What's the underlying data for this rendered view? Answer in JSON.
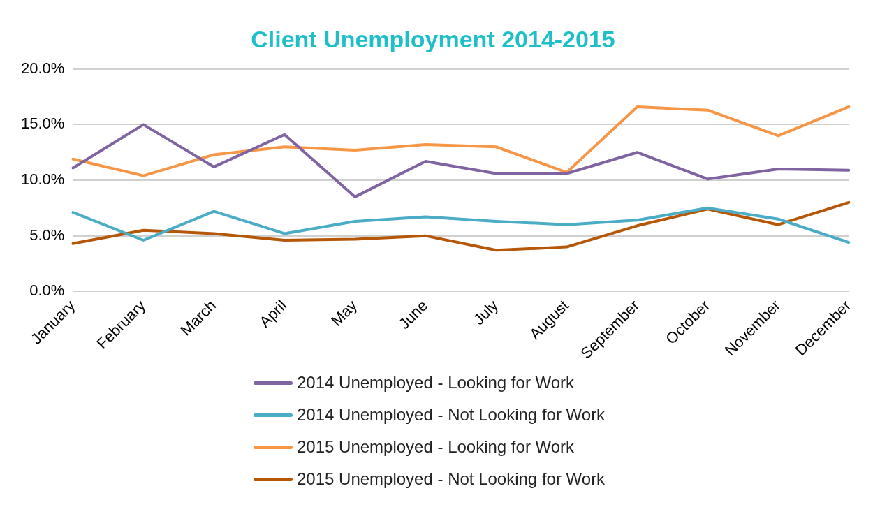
{
  "chart_data": {
    "type": "line",
    "title": "Client Unemployment 2014-2015",
    "categories": [
      "January",
      "February",
      "March",
      "April",
      "May",
      "June",
      "July",
      "August",
      "September",
      "October",
      "November",
      "December"
    ],
    "series": [
      {
        "name": "2014 Unemployed - Looking for Work",
        "color": "#8064a2",
        "values": [
          11.1,
          15.0,
          11.2,
          14.1,
          8.5,
          11.7,
          10.6,
          10.6,
          12.5,
          10.1,
          11.0,
          10.9
        ]
      },
      {
        "name": "2014 Unemployed - Not Looking for Work",
        "color": "#4bacc6",
        "values": [
          7.1,
          4.6,
          7.2,
          5.2,
          6.3,
          6.7,
          6.3,
          6.0,
          6.4,
          7.5,
          6.5,
          4.4
        ]
      },
      {
        "name": "2015 Unemployed - Looking for Work",
        "color": "#f79646",
        "values": [
          11.9,
          10.4,
          12.3,
          13.0,
          12.7,
          13.2,
          13.0,
          10.7,
          16.6,
          16.3,
          14.0,
          16.6
        ]
      },
      {
        "name": "2015 Unemployed - Not Looking for Work",
        "color": "#b65708",
        "values": [
          4.3,
          5.5,
          5.2,
          4.6,
          4.7,
          5.0,
          3.7,
          4.0,
          5.9,
          7.4,
          6.0,
          8.0
        ]
      }
    ],
    "ylim": [
      0,
      20
    ],
    "yticks": [
      {
        "value": 0,
        "label": "0.0%"
      },
      {
        "value": 5,
        "label": "5.0%"
      },
      {
        "value": 10,
        "label": "10.0%"
      },
      {
        "value": 15,
        "label": "15.0%"
      },
      {
        "value": 20,
        "label": "20.0%"
      }
    ],
    "grid": "y",
    "legend": "bottom",
    "marker": "none",
    "line_style": "solid"
  }
}
